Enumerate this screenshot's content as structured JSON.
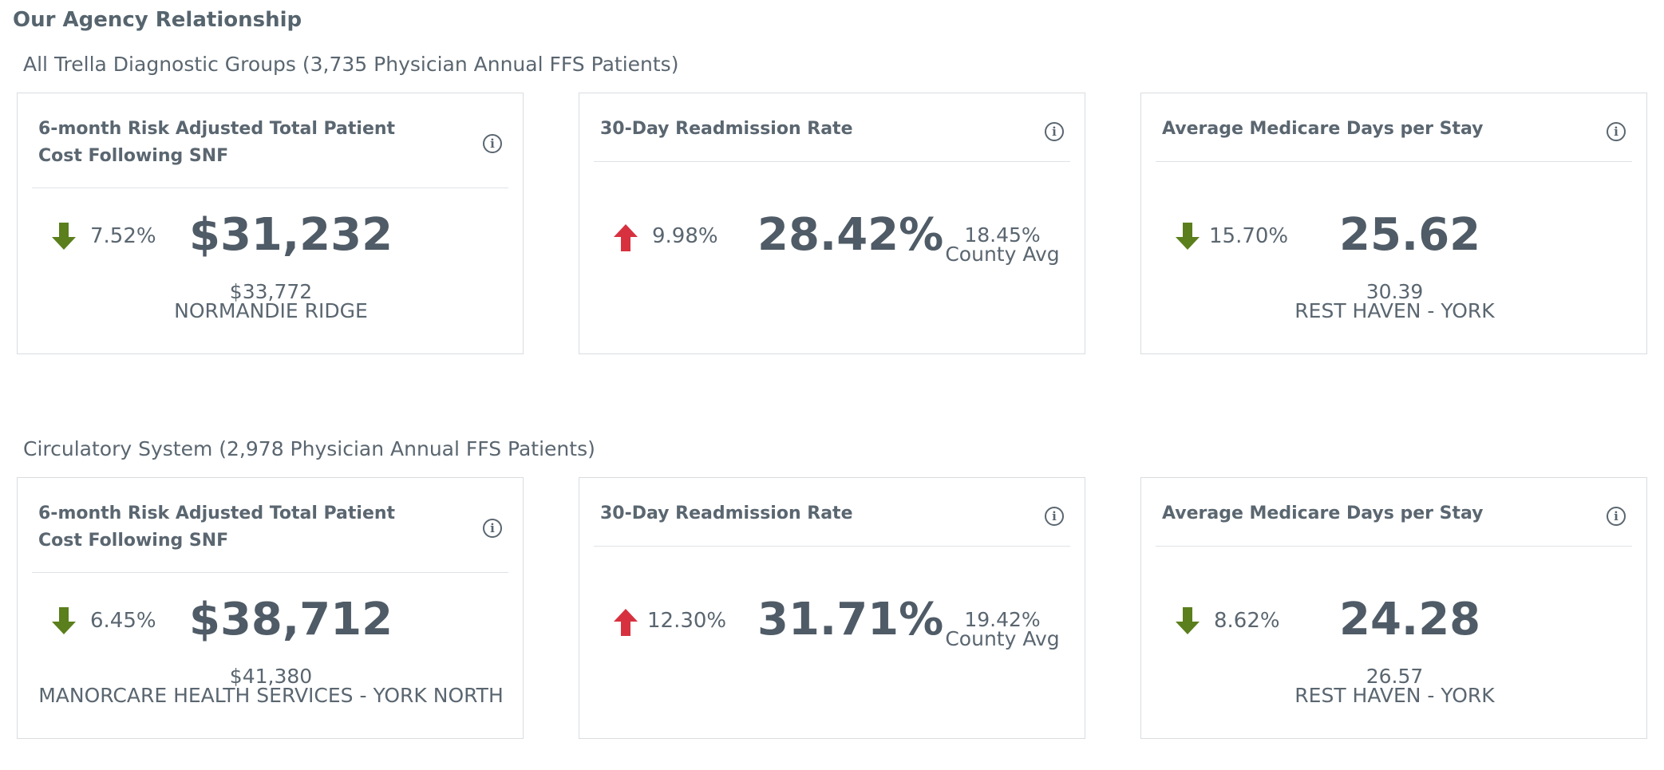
{
  "page": {
    "title": "Our Agency Relationship"
  },
  "colors": {
    "down_arrow": "#5a7f1c",
    "up_arrow": "#d7313f",
    "text": "#5a6670"
  },
  "sections": [
    {
      "title": "All Trella Diagnostic Groups (3,735 Physician Annual FFS Patients)",
      "cards": [
        {
          "title": "6-month Risk Adjusted Total Patient Cost Following SNF",
          "direction": "down",
          "change": "7.52%",
          "value": "$31,232",
          "compare_value": "$33,772",
          "compare_label": "NORMANDIE RIDGE",
          "icon": "info-icon"
        },
        {
          "title": "30-Day Readmission Rate",
          "direction": "up",
          "change": "9.98%",
          "value": "28.42%",
          "compare_value": "18.45%",
          "compare_label": "County Avg",
          "icon": "info-icon"
        },
        {
          "title": "Average Medicare Days per Stay",
          "direction": "down",
          "change": "15.70%",
          "value": "25.62",
          "compare_value": "30.39",
          "compare_label": "REST HAVEN - YORK",
          "icon": "info-icon"
        }
      ]
    },
    {
      "title": "Circulatory System (2,978 Physician Annual FFS Patients)",
      "cards": [
        {
          "title": "6-month Risk Adjusted Total Patient Cost Following SNF",
          "direction": "down",
          "change": "6.45%",
          "value": "$38,712",
          "compare_value": "$41,380",
          "compare_label": "MANORCARE HEALTH SERVICES - YORK NORTH",
          "icon": "info-icon"
        },
        {
          "title": "30-Day Readmission Rate",
          "direction": "up",
          "change": "12.30%",
          "value": "31.71%",
          "compare_value": "19.42%",
          "compare_label": "County Avg",
          "icon": "info-icon"
        },
        {
          "title": "Average Medicare Days per Stay",
          "direction": "down",
          "change": "8.62%",
          "value": "24.28",
          "compare_value": "26.57",
          "compare_label": "REST HAVEN - YORK",
          "icon": "info-icon"
        }
      ]
    }
  ]
}
